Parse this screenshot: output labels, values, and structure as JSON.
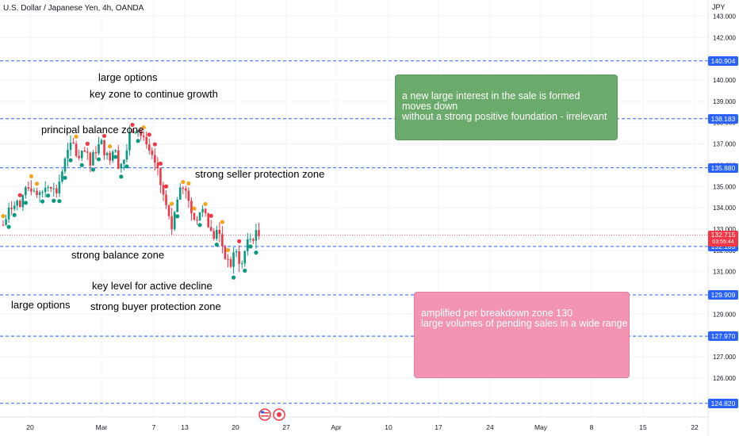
{
  "header": {
    "title": "U.S. Dollar / Japanese Yen, 4h, OANDA",
    "unit": "JPY"
  },
  "chart_data": {
    "type": "candlestick",
    "title": "U.S. Dollar / Japanese Yen, 4h, OANDA",
    "y_unit": "JPY",
    "ylim": [
      124.6,
      143.0
    ],
    "y_ticks": [
      126.0,
      127.0,
      128.0,
      129.0,
      130.0,
      131.0,
      132.0,
      133.0,
      134.0,
      135.0,
      136.0,
      137.0,
      138.0,
      139.0,
      140.0,
      141.0,
      142.0,
      143.0
    ],
    "y_tick_labels": [
      "126.000",
      "127.000",
      "128.000",
      "129.000",
      "130.000",
      "131.000",
      "132.000",
      "133.000",
      "134.000",
      "135.000",
      "136.000",
      "137.000",
      "138.000",
      "139.000",
      "140.000",
      "141.000",
      "142.000",
      "143.000"
    ],
    "x_tick_labels": [
      "20",
      "Mar",
      "7",
      "13",
      "20",
      "27",
      "Apr",
      "10",
      "17",
      "24",
      "May",
      "8",
      "15",
      "22"
    ],
    "horizontal_levels": [
      {
        "value": 140.904,
        "label": "140.904"
      },
      {
        "value": 138.183,
        "label": "138.183"
      },
      {
        "value": 135.88,
        "label": "135.880"
      },
      {
        "value": 132.185,
        "label": "132.185"
      },
      {
        "value": 129.909,
        "label": "129.909"
      },
      {
        "value": 127.97,
        "label": "127.970"
      },
      {
        "value": 124.82,
        "label": "124.820"
      }
    ],
    "current_price": {
      "value": 132.715,
      "label": "132.715",
      "countdown": "03:55:44"
    },
    "price_path": [
      133.2,
      133.8,
      134.4,
      134.0,
      134.8,
      135.0,
      134.3,
      134.9,
      135.3,
      134.6,
      135.6,
      136.5,
      137.0,
      136.2,
      136.6,
      136.0,
      136.8,
      137.0,
      136.3,
      136.8,
      136.0,
      136.4,
      137.6,
      137.9,
      137.2,
      136.5,
      136.1,
      135.2,
      134.0,
      133.0,
      134.4,
      135.0,
      134.2,
      133.3,
      134.0,
      133.4,
      132.6,
      132.9,
      132.0,
      131.2,
      131.9,
      131.4,
      132.3,
      132.7,
      132.7
    ],
    "annotations": {
      "large_options_top": "large options",
      "key_zone": "key zone to continue growth",
      "principal_balance": "principal balance zone",
      "seller_protection": "strong seller protection zone",
      "strong_balance": "strong balance zone",
      "key_level_decline": "key level for active decline",
      "large_options_bottom": "large options",
      "buyer_protection": "strong buyer protection zone"
    },
    "notes": {
      "green": "a new large interest in the sale is formed\nmoves down\nwithout a strong positive foundation - irrelevant",
      "pink": "amplified per breakdown zone 130\nlarge volumes of pending sales in a wide range"
    },
    "colors": {
      "up": "#089981",
      "down": "#f23645",
      "level_line": "#2962ff",
      "dot_up": "#089981",
      "dot_down": "#f23645",
      "dot_alt": "#f7a21b"
    }
  }
}
